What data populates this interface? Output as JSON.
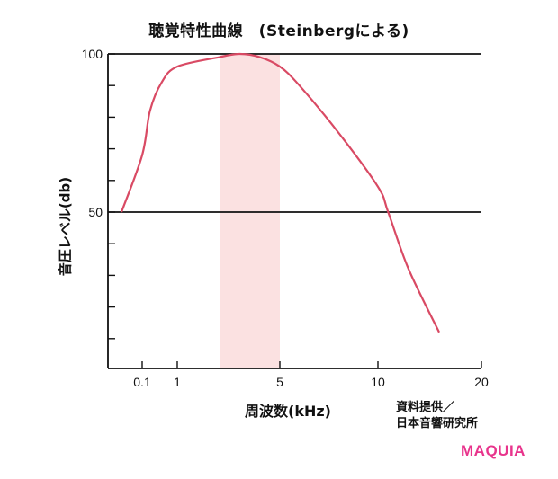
{
  "chart_data": {
    "type": "line",
    "title": "聴覚特性曲線　(Steinbergによる)",
    "xlabel": "周波数(kHz)",
    "ylabel": "音圧レベル(db)",
    "x_ticks": [
      "0.1",
      "1",
      "5",
      "10",
      "20"
    ],
    "y_ticks": [
      "100",
      "50"
    ],
    "ylim": [
      0,
      100
    ],
    "highlight_band_khz": [
      2,
      5
    ],
    "reference_lines": [
      100,
      50
    ],
    "series": [
      {
        "color": "#d94a64",
        "points": [
          {
            "x": 0.05,
            "y": 50
          },
          {
            "x": 0.1,
            "y": 68
          },
          {
            "x": 0.3,
            "y": 82
          },
          {
            "x": 0.6,
            "y": 91
          },
          {
            "x": 1,
            "y": 96
          },
          {
            "x": 2,
            "y": 99
          },
          {
            "x": 3,
            "y": 100
          },
          {
            "x": 4,
            "y": 99
          },
          {
            "x": 5,
            "y": 96
          },
          {
            "x": 6,
            "y": 90
          },
          {
            "x": 8,
            "y": 75
          },
          {
            "x": 10,
            "y": 58
          },
          {
            "x": 11,
            "y": 50
          },
          {
            "x": 13,
            "y": 32
          },
          {
            "x": 16,
            "y": 12
          }
        ]
      }
    ],
    "band_color": "#fbe1e1",
    "axis_color": "#111111"
  },
  "source_note": [
    "資料提供／",
    "日本音響研究所"
  ],
  "brand": {
    "logo": "MAQUIA",
    "color": "#e8348c"
  }
}
